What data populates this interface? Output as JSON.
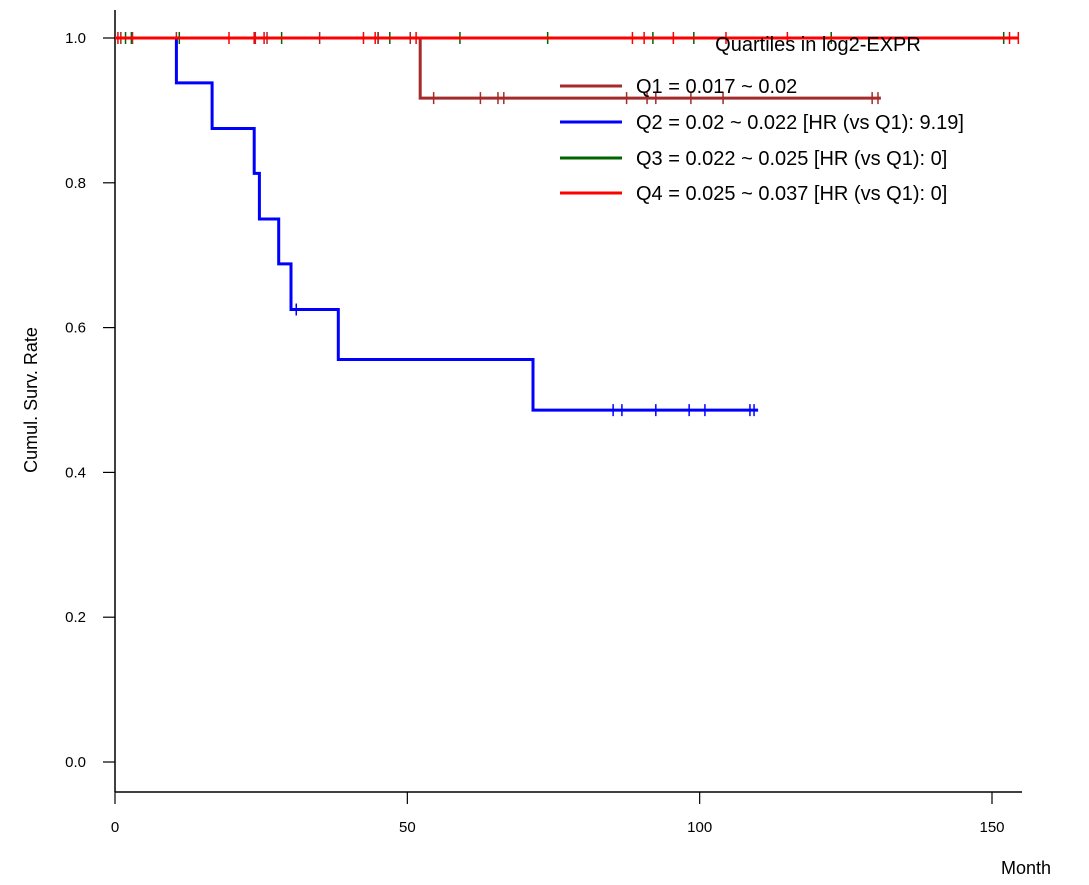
{
  "chart_data": {
    "type": "line",
    "subtype": "kaplan-meier",
    "title": "",
    "xlabel": "Month",
    "ylabel": "Cumul. Surv. Rate",
    "xlim": [
      0,
      160
    ],
    "ylim": [
      0,
      1
    ],
    "x_ticks": [
      0,
      50,
      100,
      150
    ],
    "y_ticks": [
      0.0,
      0.2,
      0.4,
      0.6,
      0.8,
      1.0
    ],
    "x_tick_labels": [
      "0",
      "50",
      "100",
      "150"
    ],
    "y_tick_labels": [
      "0.0",
      "0.2",
      "0.4",
      "0.6",
      "0.8",
      "1.0"
    ],
    "grid": false,
    "legend": {
      "title": "Quartiles in log2-EXPR",
      "placement": "top-right"
    },
    "series": [
      {
        "name": "Q1 = 0.017 ~ 0.02",
        "color": "#a52a2a",
        "steps": [
          [
            0,
            1.0
          ],
          [
            52.2,
            1.0
          ],
          [
            52.2,
            0.917
          ],
          [
            131,
            0.917
          ]
        ],
        "censor": [
          [
            1,
            1.0
          ],
          [
            3,
            1.0
          ],
          [
            10.5,
            1.0
          ],
          [
            24,
            1.0
          ],
          [
            26,
            1.0
          ],
          [
            35,
            1.0
          ],
          [
            45,
            1.0
          ],
          [
            50.5,
            1.0
          ],
          [
            54.5,
            0.917
          ],
          [
            62.5,
            0.917
          ],
          [
            65.5,
            0.917
          ],
          [
            66.5,
            0.917
          ],
          [
            87.5,
            0.917
          ],
          [
            91,
            0.917
          ],
          [
            92.5,
            0.917
          ],
          [
            98.5,
            0.917
          ],
          [
            104,
            0.917
          ],
          [
            129.5,
            0.917
          ],
          [
            130.5,
            0.917
          ]
        ]
      },
      {
        "name": "Q2 = 0.02 ~ 0.022 [HR (vs Q1): 9.19]",
        "color": "#0000ff",
        "steps": [
          [
            0,
            1.0
          ],
          [
            10.5,
            1.0
          ],
          [
            10.5,
            0.938
          ],
          [
            16.6,
            0.938
          ],
          [
            16.6,
            0.875
          ],
          [
            23.8,
            0.875
          ],
          [
            23.8,
            0.813
          ],
          [
            24.7,
            0.813
          ],
          [
            24.7,
            0.75
          ],
          [
            28,
            0.75
          ],
          [
            28,
            0.688
          ],
          [
            30.1,
            0.688
          ],
          [
            30.1,
            0.625
          ],
          [
            38.2,
            0.625
          ],
          [
            38.2,
            0.556
          ],
          [
            71.5,
            0.556
          ],
          [
            71.5,
            0.486
          ],
          [
            110,
            0.486
          ]
        ],
        "censor": [
          [
            31,
            0.625
          ],
          [
            85.2,
            0.486
          ],
          [
            86.7,
            0.486
          ],
          [
            92.5,
            0.486
          ],
          [
            98.2,
            0.486
          ],
          [
            100.9,
            0.486
          ],
          [
            108.6,
            0.486
          ],
          [
            109.3,
            0.486
          ]
        ]
      },
      {
        "name": "Q3 = 0.022 ~ 0.025 [HR (vs Q1): 0]",
        "color": "#006400",
        "steps": [
          [
            0,
            1.0
          ],
          [
            153.5,
            1.0
          ]
        ],
        "censor": [
          [
            1.8,
            1.0
          ],
          [
            2.8,
            1.0
          ],
          [
            11,
            1.0
          ],
          [
            28.5,
            1.0
          ],
          [
            45,
            1.0
          ],
          [
            47,
            1.0
          ],
          [
            59,
            1.0
          ],
          [
            74,
            1.0
          ],
          [
            92,
            1.0
          ],
          [
            99,
            1.0
          ],
          [
            122.5,
            1.0
          ],
          [
            152,
            1.0
          ]
        ]
      },
      {
        "name": "Q4 = 0.025 ~ 0.037 [HR (vs Q1): 0]",
        "color": "#ff0000",
        "steps": [
          [
            0,
            1.0
          ],
          [
            154.5,
            1.0
          ]
        ],
        "censor": [
          [
            0.5,
            1.0
          ],
          [
            19.5,
            1.0
          ],
          [
            23.8,
            1.0
          ],
          [
            25.5,
            1.0
          ],
          [
            42.5,
            1.0
          ],
          [
            44.5,
            1.0
          ],
          [
            51.5,
            1.0
          ],
          [
            88.5,
            1.0
          ],
          [
            90.5,
            1.0
          ],
          [
            95.5,
            1.0
          ],
          [
            104.5,
            1.0
          ],
          [
            115,
            1.0
          ],
          [
            153,
            1.0
          ],
          [
            154.5,
            1.0
          ]
        ]
      }
    ]
  }
}
